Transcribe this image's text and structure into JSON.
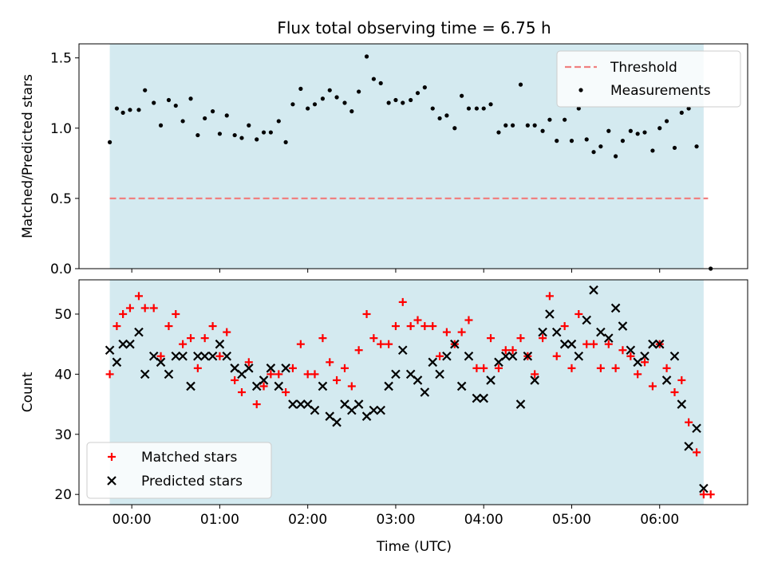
{
  "title": "Flux total observing time = 6.75 h",
  "colors": {
    "shade": "#d4eaf0",
    "threshold": "#f08080",
    "measurement": "#000000",
    "matched": "#ff0000",
    "predicted": "#000000"
  },
  "chart_data": [
    {
      "type": "scatter",
      "ylabel": "Matched/Predicted stars",
      "ylim": [
        0,
        1.6
      ],
      "yticks": [
        "0.0",
        "0.5",
        "1.0",
        "1.5"
      ],
      "xlim_hours": [
        -0.6,
        7.0
      ],
      "shaded_span_hours": [
        -0.25,
        6.5
      ],
      "legend_position": "upper-right",
      "threshold": {
        "name": "Threshold",
        "value": 0.5,
        "x_hours": [
          -0.25,
          6.55
        ],
        "style": "dashed"
      },
      "series": [
        {
          "name": "Measurements",
          "marker": "dot",
          "x_hours": [
            -0.25,
            -0.17,
            -0.1,
            -0.02,
            0.08,
            0.15,
            0.25,
            0.33,
            0.42,
            0.5,
            0.58,
            0.67,
            0.75,
            0.83,
            0.92,
            1.0,
            1.08,
            1.17,
            1.25,
            1.33,
            1.42,
            1.5,
            1.58,
            1.67,
            1.75,
            1.83,
            1.92,
            2.0,
            2.08,
            2.17,
            2.25,
            2.33,
            2.42,
            2.5,
            2.58,
            2.67,
            2.75,
            2.83,
            2.92,
            3.0,
            3.08,
            3.17,
            3.25,
            3.33,
            3.42,
            3.5,
            3.58,
            3.67,
            3.75,
            3.83,
            3.92,
            4.0,
            4.08,
            4.17,
            4.25,
            4.33,
            4.42,
            4.5,
            4.58,
            4.67,
            4.75,
            4.83,
            4.92,
            5.0,
            5.08,
            5.17,
            5.25,
            5.33,
            5.42,
            5.5,
            5.58,
            5.67,
            5.75,
            5.83,
            5.92,
            6.0,
            6.08,
            6.17,
            6.25,
            6.33,
            6.42,
            6.58
          ],
          "y": [
            0.9,
            1.14,
            1.11,
            1.13,
            1.13,
            1.27,
            1.18,
            1.02,
            1.2,
            1.16,
            1.05,
            1.21,
            0.95,
            1.07,
            1.12,
            0.96,
            1.09,
            0.95,
            0.93,
            1.02,
            0.92,
            0.97,
            0.97,
            1.05,
            0.9,
            1.17,
            1.28,
            1.14,
            1.17,
            1.21,
            1.27,
            1.22,
            1.18,
            1.12,
            1.26,
            1.51,
            1.35,
            1.32,
            1.18,
            1.2,
            1.18,
            1.2,
            1.25,
            1.29,
            1.14,
            1.07,
            1.09,
            1.0,
            1.23,
            1.14,
            1.14,
            1.14,
            1.17,
            0.97,
            1.02,
            1.02,
            1.31,
            1.02,
            1.02,
            0.98,
            1.06,
            0.91,
            1.06,
            0.91,
            1.14,
            0.92,
            0.83,
            0.87,
            0.98,
            0.8,
            0.91,
            0.98,
            0.96,
            0.97,
            0.84,
            1.0,
            1.05,
            0.86,
            1.11,
            1.14,
            0.87,
            0.0
          ]
        }
      ]
    },
    {
      "type": "scatter",
      "xlabel": "Time (UTC)",
      "ylabel": "Count",
      "ylim": [
        18.3,
        55.7
      ],
      "yticks": [
        "20",
        "30",
        "40",
        "50"
      ],
      "xticks": [
        "00:00",
        "01:00",
        "02:00",
        "03:00",
        "04:00",
        "05:00",
        "06:00"
      ],
      "xlim_hours": [
        -0.6,
        7.0
      ],
      "shaded_span_hours": [
        -0.25,
        6.5
      ],
      "legend_position": "lower-left",
      "series": [
        {
          "name": "Matched stars",
          "marker": "plus",
          "x_hours": [
            -0.25,
            -0.17,
            -0.1,
            -0.02,
            0.08,
            0.15,
            0.25,
            0.33,
            0.42,
            0.5,
            0.58,
            0.67,
            0.75,
            0.83,
            0.92,
            1.0,
            1.08,
            1.17,
            1.25,
            1.33,
            1.42,
            1.5,
            1.58,
            1.67,
            1.75,
            1.83,
            1.92,
            2.0,
            2.08,
            2.17,
            2.25,
            2.33,
            2.42,
            2.5,
            2.58,
            2.67,
            2.75,
            2.83,
            2.92,
            3.0,
            3.08,
            3.17,
            3.25,
            3.33,
            3.42,
            3.5,
            3.58,
            3.67,
            3.75,
            3.83,
            3.92,
            4.0,
            4.08,
            4.17,
            4.25,
            4.33,
            4.42,
            4.5,
            4.58,
            4.67,
            4.75,
            4.83,
            4.92,
            5.0,
            5.08,
            5.17,
            5.25,
            5.33,
            5.42,
            5.5,
            5.58,
            5.67,
            5.75,
            5.83,
            5.92,
            6.0,
            6.08,
            6.17,
            6.25,
            6.33,
            6.42,
            6.5,
            6.58
          ],
          "y": [
            40,
            48,
            50,
            51,
            53,
            51,
            51,
            43,
            48,
            50,
            45,
            46,
            41,
            46,
            48,
            43,
            47,
            39,
            37,
            42,
            35,
            38,
            40,
            40,
            37,
            41,
            45,
            40,
            40,
            46,
            42,
            39,
            41,
            38,
            44,
            50,
            46,
            45,
            45,
            48,
            52,
            48,
            49,
            48,
            48,
            43,
            47,
            45,
            47,
            49,
            41,
            41,
            46,
            41,
            44,
            44,
            46,
            43,
            40,
            46,
            53,
            43,
            48,
            41,
            50,
            45,
            45,
            41,
            45,
            41,
            44,
            43,
            40,
            42,
            38,
            45,
            41,
            37,
            39,
            32,
            27,
            20,
            20
          ]
        },
        {
          "name": "Predicted stars",
          "marker": "x",
          "x_hours": [
            -0.25,
            -0.17,
            -0.1,
            -0.02,
            0.08,
            0.15,
            0.25,
            0.33,
            0.42,
            0.5,
            0.58,
            0.67,
            0.75,
            0.83,
            0.92,
            1.0,
            1.08,
            1.17,
            1.25,
            1.33,
            1.42,
            1.5,
            1.58,
            1.67,
            1.75,
            1.83,
            1.92,
            2.0,
            2.08,
            2.17,
            2.25,
            2.33,
            2.42,
            2.5,
            2.58,
            2.67,
            2.75,
            2.83,
            2.92,
            3.0,
            3.08,
            3.17,
            3.25,
            3.33,
            3.42,
            3.5,
            3.58,
            3.67,
            3.75,
            3.83,
            3.92,
            4.0,
            4.08,
            4.17,
            4.25,
            4.33,
            4.42,
            4.5,
            4.58,
            4.67,
            4.75,
            4.83,
            4.92,
            5.0,
            5.08,
            5.17,
            5.25,
            5.33,
            5.42,
            5.5,
            5.58,
            5.67,
            5.75,
            5.83,
            5.92,
            6.0,
            6.08,
            6.17,
            6.25,
            6.33,
            6.42,
            6.5
          ],
          "y": [
            44,
            42,
            45,
            45,
            47,
            40,
            43,
            42,
            40,
            43,
            43,
            38,
            43,
            43,
            43,
            45,
            43,
            41,
            40,
            41,
            38,
            39,
            41,
            38,
            41,
            35,
            35,
            35,
            34,
            38,
            33,
            32,
            35,
            34,
            35,
            33,
            34,
            34,
            38,
            40,
            44,
            40,
            39,
            37,
            42,
            40,
            43,
            45,
            38,
            43,
            36,
            36,
            39,
            42,
            43,
            43,
            35,
            43,
            39,
            47,
            50,
            47,
            45,
            45,
            43,
            49,
            54,
            47,
            46,
            51,
            48,
            44,
            42,
            43,
            45,
            45,
            39,
            43,
            35,
            28,
            31,
            21
          ]
        }
      ]
    }
  ]
}
